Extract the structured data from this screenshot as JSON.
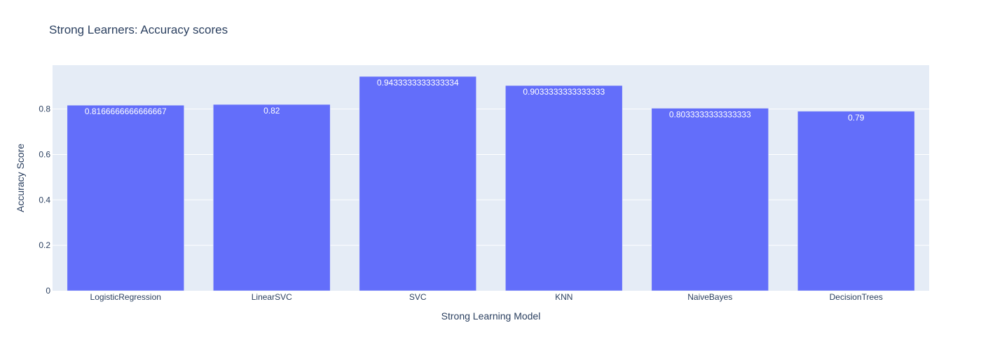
{
  "chart_data": {
    "type": "bar",
    "title": "Strong Learners: Accuracy scores",
    "xlabel": "Strong Learning Model",
    "ylabel": "Accuracy Score",
    "categories": [
      "LogisticRegression",
      "LinearSVC",
      "SVC",
      "KNN",
      "NaiveBayes",
      "DecisionTrees"
    ],
    "values": [
      0.8166666666666667,
      0.82,
      0.9433333333333334,
      0.9033333333333333,
      0.8033333333333333,
      0.79
    ],
    "data_labels": [
      "0.8166666666666667",
      "0.82",
      "0.9433333333333334",
      "0.9033333333333333",
      "0.8033333333333333",
      "0.79"
    ],
    "ylim": [
      0,
      0.993
    ],
    "yticks": [
      0,
      0.2,
      0.4,
      0.6,
      0.8
    ],
    "ytick_labels": [
      "0",
      "0.2",
      "0.4",
      "0.6",
      "0.8"
    ],
    "grid": true,
    "legend": "none"
  },
  "colors": {
    "bar": "#636efa",
    "plot_background": "#e5ecf6",
    "grid": "#ffffff",
    "text": "#2a3f5f",
    "bar_label": "#ffffff"
  }
}
